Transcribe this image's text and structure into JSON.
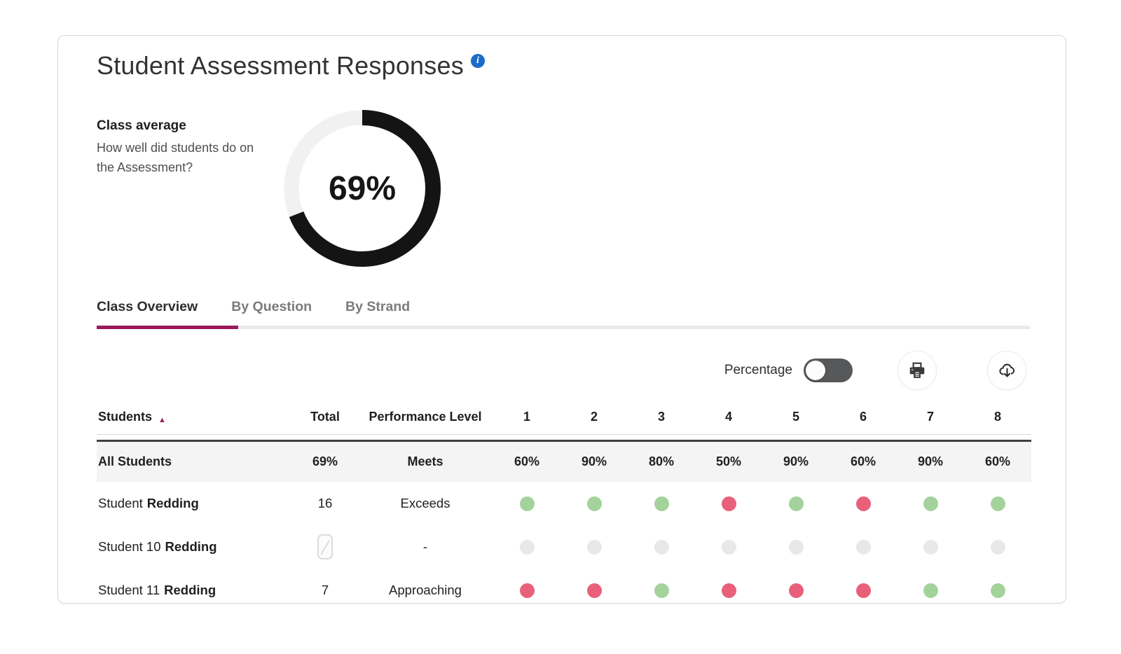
{
  "header": {
    "title": "Student Assessment Responses"
  },
  "class_average": {
    "label": "Class average",
    "description": "How well did students do on the Assessment?",
    "value_label": "69%",
    "percent": 69
  },
  "tabs": [
    {
      "label": "Class Overview",
      "active": true
    },
    {
      "label": "By Question",
      "active": false
    },
    {
      "label": "By Strand",
      "active": false
    }
  ],
  "toolbar": {
    "toggle_label": "Percentage",
    "toggle_state": "off",
    "icons": [
      "printer-icon",
      "cloud-download-icon"
    ]
  },
  "table": {
    "columns": [
      "Students",
      "Total",
      "Performance Level",
      "1",
      "2",
      "3",
      "4",
      "5",
      "6",
      "7",
      "8"
    ],
    "sort": {
      "column": "Students",
      "direction": "asc"
    },
    "summary": {
      "name": "All Students",
      "total": "69%",
      "performance": "Meets",
      "values": [
        "60%",
        "90%",
        "80%",
        "50%",
        "90%",
        "60%",
        "90%",
        "60%"
      ]
    },
    "rows": [
      {
        "first": "Student",
        "last": "Redding",
        "total": "16",
        "performance": "Exceeds",
        "dots": [
          "green",
          "green",
          "green",
          "red",
          "green",
          "red",
          "green",
          "green"
        ]
      },
      {
        "first": "Student 10",
        "last": "Redding",
        "total": "",
        "total_icon": "no-response-icon",
        "performance": "-",
        "dots": [
          "gray",
          "gray",
          "gray",
          "gray",
          "gray",
          "gray",
          "gray",
          "gray"
        ]
      },
      {
        "first": "Student 11",
        "last": "Redding",
        "total": "7",
        "performance": "Approaching",
        "dots": [
          "red",
          "red",
          "green",
          "red",
          "red",
          "red",
          "green",
          "green"
        ]
      }
    ]
  },
  "chart_data": {
    "type": "pie",
    "title": "Class average",
    "labels": [
      "class average score",
      "remaining"
    ],
    "values": [
      69,
      31
    ],
    "center_label": "69%",
    "colors": [
      "#141414",
      "#F1F1F1"
    ]
  },
  "colors": {
    "accent": "#9C1A59",
    "info_blue": "#1D6BC9",
    "donut_fill": "#141414",
    "donut_track": "#F1F1F1",
    "dot_green": "#A3D39B",
    "dot_red": "#E9607A",
    "dot_gray": "#E8E8E8",
    "summary_row_bg": "#F4F4F4",
    "summary_row_border": "#3F3F3F"
  }
}
